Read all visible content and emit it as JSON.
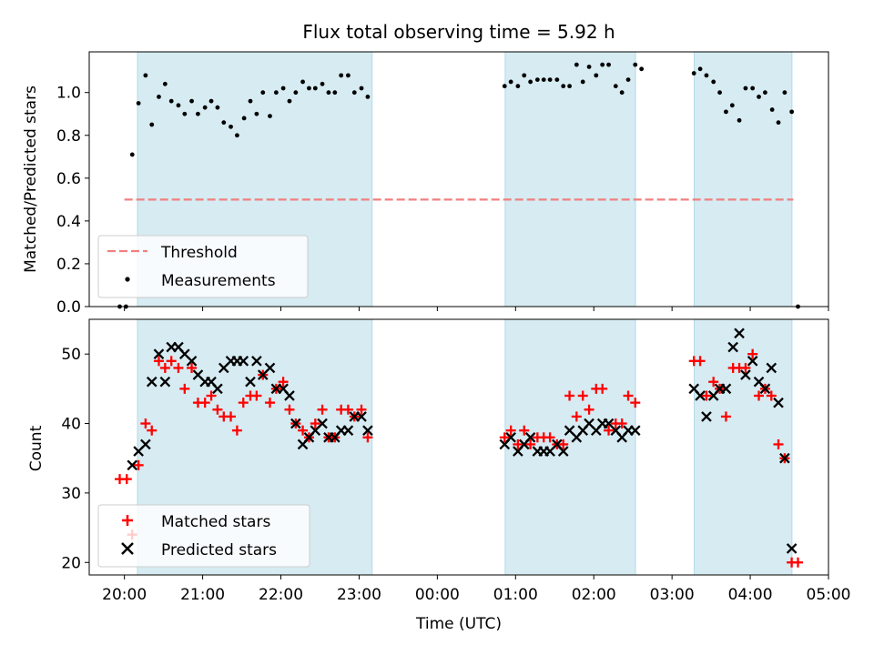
{
  "chart_data": [
    {
      "type": "scatter",
      "title": "Flux total observing time = 5.92 h",
      "ylabel": "Matched/Predicted stars",
      "ylim": [
        0.0,
        1.19
      ],
      "yticks": [
        "0.0",
        "0.2",
        "0.4",
        "0.6",
        "0.8",
        "1.0"
      ],
      "xlim_hours": [
        19.55,
        29.0
      ],
      "threshold_line": {
        "y": 0.5,
        "x_start": 20.0,
        "x_end": 28.55
      },
      "shaded_intervals_utc": [
        [
          "20:10",
          "23:10"
        ],
        [
          "00:52",
          "02:32"
        ],
        [
          "03:17",
          "04:32"
        ]
      ],
      "legend": {
        "location": "lower left",
        "entries": [
          "Threshold",
          "Measurements"
        ]
      },
      "series": [
        {
          "name": "Measurements",
          "color": "#000000",
          "marker": "dot",
          "points": [
            [
              19.94,
              0.0
            ],
            [
              20.02,
              0.0
            ],
            [
              20.1,
              0.71
            ],
            [
              20.18,
              0.95
            ],
            [
              20.27,
              1.08
            ],
            [
              20.35,
              0.85
            ],
            [
              20.44,
              0.98
            ],
            [
              20.52,
              1.04
            ],
            [
              20.6,
              0.96
            ],
            [
              20.69,
              0.94
            ],
            [
              20.77,
              0.9
            ],
            [
              20.86,
              0.96
            ],
            [
              20.94,
              0.9
            ],
            [
              21.03,
              0.93
            ],
            [
              21.11,
              0.96
            ],
            [
              21.19,
              0.93
            ],
            [
              21.27,
              0.86
            ],
            [
              21.36,
              0.84
            ],
            [
              21.44,
              0.8
            ],
            [
              21.53,
              0.88
            ],
            [
              21.61,
              0.96
            ],
            [
              21.69,
              0.9
            ],
            [
              21.77,
              1.0
            ],
            [
              21.86,
              0.89
            ],
            [
              21.94,
              1.0
            ],
            [
              22.03,
              1.02
            ],
            [
              22.11,
              0.96
            ],
            [
              22.19,
              1.0
            ],
            [
              22.28,
              1.05
            ],
            [
              22.36,
              1.02
            ],
            [
              22.44,
              1.02
            ],
            [
              22.53,
              1.04
            ],
            [
              22.61,
              1.0
            ],
            [
              22.69,
              1.0
            ],
            [
              22.77,
              1.08
            ],
            [
              22.86,
              1.08
            ],
            [
              22.94,
              1.0
            ],
            [
              23.03,
              1.02
            ],
            [
              23.11,
              0.98
            ],
            [
              24.86,
              1.03
            ],
            [
              24.94,
              1.05
            ],
            [
              25.03,
              1.03
            ],
            [
              25.11,
              1.08
            ],
            [
              25.19,
              1.05
            ],
            [
              25.28,
              1.06
            ],
            [
              25.36,
              1.06
            ],
            [
              25.44,
              1.06
            ],
            [
              25.53,
              1.06
            ],
            [
              25.61,
              1.03
            ],
            [
              25.69,
              1.03
            ],
            [
              25.78,
              1.13
            ],
            [
              25.86,
              1.05
            ],
            [
              25.94,
              1.12
            ],
            [
              26.03,
              1.08
            ],
            [
              26.11,
              1.13
            ],
            [
              26.19,
              1.13
            ],
            [
              26.28,
              1.03
            ],
            [
              26.36,
              1.0
            ],
            [
              26.44,
              1.06
            ],
            [
              26.53,
              1.13
            ],
            [
              26.61,
              1.11
            ],
            [
              27.28,
              1.09
            ],
            [
              27.36,
              1.11
            ],
            [
              27.44,
              1.08
            ],
            [
              27.53,
              1.05
            ],
            [
              27.61,
              1.0
            ],
            [
              27.69,
              0.91
            ],
            [
              27.77,
              0.94
            ],
            [
              27.86,
              0.87
            ],
            [
              27.94,
              1.02
            ],
            [
              28.03,
              1.02
            ],
            [
              28.11,
              0.98
            ],
            [
              28.19,
              1.0
            ],
            [
              28.28,
              0.92
            ],
            [
              28.36,
              0.86
            ],
            [
              28.44,
              1.0
            ],
            [
              28.53,
              0.91
            ],
            [
              28.61,
              0.0
            ]
          ]
        },
        {
          "name": "Threshold",
          "color": "#f08080",
          "style": "dashed",
          "y": 0.5
        }
      ]
    },
    {
      "type": "scatter",
      "xlabel": "Time (UTC)",
      "ylabel": "Count",
      "ylim": [
        18.2,
        55.0
      ],
      "yticks": [
        "20",
        "30",
        "40",
        "50"
      ],
      "xticks": [
        "20:00",
        "21:00",
        "22:00",
        "23:00",
        "00:00",
        "01:00",
        "02:00",
        "03:00",
        "04:00",
        "05:00"
      ],
      "xlim_hours": [
        19.55,
        29.0
      ],
      "legend": {
        "location": "lower left",
        "entries": [
          "Matched stars",
          "Predicted stars"
        ]
      },
      "series": [
        {
          "name": "Matched stars",
          "color": "#ff0000",
          "marker": "plus",
          "points": [
            [
              19.94,
              32
            ],
            [
              20.03,
              32
            ],
            [
              20.1,
              24
            ],
            [
              20.18,
              34
            ],
            [
              20.27,
              40
            ],
            [
              20.35,
              39
            ],
            [
              20.44,
              49
            ],
            [
              20.52,
              48
            ],
            [
              20.6,
              49
            ],
            [
              20.69,
              48
            ],
            [
              20.77,
              45
            ],
            [
              20.86,
              48
            ],
            [
              20.94,
              43
            ],
            [
              21.03,
              43
            ],
            [
              21.11,
              44
            ],
            [
              21.19,
              42
            ],
            [
              21.27,
              41
            ],
            [
              21.36,
              41
            ],
            [
              21.44,
              39
            ],
            [
              21.52,
              43
            ],
            [
              21.61,
              44
            ],
            [
              21.69,
              44
            ],
            [
              21.77,
              47
            ],
            [
              21.86,
              43
            ],
            [
              21.94,
              45
            ],
            [
              22.03,
              46
            ],
            [
              22.11,
              42
            ],
            [
              22.19,
              40
            ],
            [
              22.28,
              39
            ],
            [
              22.36,
              38
            ],
            [
              22.44,
              40
            ],
            [
              22.53,
              42
            ],
            [
              22.61,
              38
            ],
            [
              22.69,
              38
            ],
            [
              22.77,
              42
            ],
            [
              22.86,
              42
            ],
            [
              22.94,
              41
            ],
            [
              23.03,
              42
            ],
            [
              23.11,
              38
            ],
            [
              24.86,
              38
            ],
            [
              24.94,
              39
            ],
            [
              25.03,
              37
            ],
            [
              25.11,
              39
            ],
            [
              25.19,
              37
            ],
            [
              25.28,
              38
            ],
            [
              25.36,
              38
            ],
            [
              25.44,
              38
            ],
            [
              25.53,
              37
            ],
            [
              25.61,
              37
            ],
            [
              25.69,
              44
            ],
            [
              25.78,
              41
            ],
            [
              25.86,
              44
            ],
            [
              25.94,
              42
            ],
            [
              26.03,
              45
            ],
            [
              26.11,
              45
            ],
            [
              26.19,
              39
            ],
            [
              26.28,
              40
            ],
            [
              26.36,
              40
            ],
            [
              26.44,
              44
            ],
            [
              26.53,
              43
            ],
            [
              27.28,
              49
            ],
            [
              27.36,
              49
            ],
            [
              27.44,
              44
            ],
            [
              27.53,
              46
            ],
            [
              27.61,
              45
            ],
            [
              27.69,
              41
            ],
            [
              27.78,
              48
            ],
            [
              27.86,
              48
            ],
            [
              27.94,
              48
            ],
            [
              28.03,
              50
            ],
            [
              28.11,
              44
            ],
            [
              28.19,
              45
            ],
            [
              28.27,
              44
            ],
            [
              28.36,
              37
            ],
            [
              28.44,
              35
            ],
            [
              28.53,
              20
            ],
            [
              28.61,
              20
            ]
          ]
        },
        {
          "name": "Predicted stars",
          "color": "#000000",
          "marker": "x",
          "points": [
            [
              20.1,
              34
            ],
            [
              20.18,
              36
            ],
            [
              20.27,
              37
            ],
            [
              20.35,
              46
            ],
            [
              20.44,
              50
            ],
            [
              20.52,
              46
            ],
            [
              20.6,
              51
            ],
            [
              20.69,
              51
            ],
            [
              20.77,
              50
            ],
            [
              20.86,
              49
            ],
            [
              20.94,
              47
            ],
            [
              21.03,
              46
            ],
            [
              21.11,
              46
            ],
            [
              21.19,
              45
            ],
            [
              21.27,
              48
            ],
            [
              21.36,
              49
            ],
            [
              21.44,
              49
            ],
            [
              21.52,
              49
            ],
            [
              21.61,
              46
            ],
            [
              21.69,
              49
            ],
            [
              21.77,
              47
            ],
            [
              21.86,
              48
            ],
            [
              21.94,
              45
            ],
            [
              22.03,
              45
            ],
            [
              22.11,
              44
            ],
            [
              22.19,
              40
            ],
            [
              22.28,
              37
            ],
            [
              22.36,
              38
            ],
            [
              22.44,
              39
            ],
            [
              22.53,
              40
            ],
            [
              22.61,
              38
            ],
            [
              22.69,
              38
            ],
            [
              22.77,
              39
            ],
            [
              22.86,
              39
            ],
            [
              22.94,
              41
            ],
            [
              23.03,
              41
            ],
            [
              23.11,
              39
            ],
            [
              24.86,
              37
            ],
            [
              24.94,
              38
            ],
            [
              25.03,
              36
            ],
            [
              25.11,
              37
            ],
            [
              25.19,
              38
            ],
            [
              25.28,
              36
            ],
            [
              25.36,
              36
            ],
            [
              25.44,
              36
            ],
            [
              25.53,
              37
            ],
            [
              25.61,
              36
            ],
            [
              25.69,
              39
            ],
            [
              25.78,
              38
            ],
            [
              25.86,
              39
            ],
            [
              25.94,
              40
            ],
            [
              26.03,
              39
            ],
            [
              26.11,
              40
            ],
            [
              26.19,
              40
            ],
            [
              26.28,
              39
            ],
            [
              26.36,
              38
            ],
            [
              26.44,
              39
            ],
            [
              26.53,
              39
            ],
            [
              27.28,
              45
            ],
            [
              27.36,
              44
            ],
            [
              27.44,
              41
            ],
            [
              27.53,
              44
            ],
            [
              27.61,
              45
            ],
            [
              27.69,
              45
            ],
            [
              27.78,
              51
            ],
            [
              27.86,
              53
            ],
            [
              27.94,
              47
            ],
            [
              28.03,
              49
            ],
            [
              28.11,
              46
            ],
            [
              28.19,
              45
            ],
            [
              28.27,
              48
            ],
            [
              28.36,
              43
            ],
            [
              28.44,
              35
            ],
            [
              28.53,
              22
            ]
          ]
        }
      ]
    }
  ]
}
